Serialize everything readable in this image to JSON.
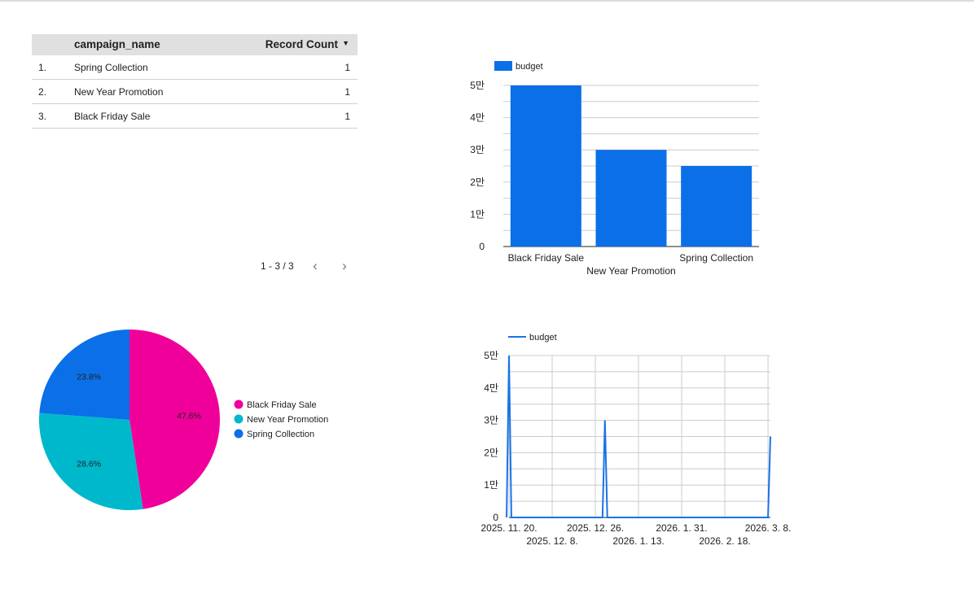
{
  "table": {
    "headers": [
      "campaign_name",
      "Record Count"
    ],
    "sort_icon": "sort-desc-icon",
    "rows": [
      {
        "idx": "1.",
        "name": "Spring Collection",
        "count": "1"
      },
      {
        "idx": "2.",
        "name": "New Year Promotion",
        "count": "1"
      },
      {
        "idx": "3.",
        "name": "Black Friday Sale",
        "count": "1"
      }
    ],
    "pagination": "1 - 3 / 3",
    "prev_icon": "chevron-left-icon",
    "next_icon": "chevron-right-icon"
  },
  "colors": {
    "blue": "#0b6fe8",
    "pink": "#f0009a",
    "teal": "#00b8cc",
    "grid": "#cccccc"
  },
  "chart_data": [
    {
      "type": "bar",
      "categories": [
        "Black Friday Sale",
        "New Year Promotion",
        "Spring Collection"
      ],
      "series": [
        {
          "name": "budget",
          "values": [
            50000,
            30000,
            25000
          ]
        }
      ],
      "ylim": [
        0,
        50000
      ],
      "yticks": [
        {
          "v": 0,
          "label": "0"
        },
        {
          "v": 10000,
          "label": "1만"
        },
        {
          "v": 20000,
          "label": "2만"
        },
        {
          "v": 30000,
          "label": "3만"
        },
        {
          "v": 40000,
          "label": "4만"
        },
        {
          "v": 50000,
          "label": "5만"
        }
      ],
      "legend": "top-left",
      "grid": true
    },
    {
      "type": "pie",
      "labels": [
        "Black Friday Sale",
        "New Year Promotion",
        "Spring Collection"
      ],
      "values": [
        47.6,
        28.6,
        23.8
      ],
      "value_labels": [
        "47.6%",
        "28.6%",
        "23.8%"
      ],
      "colors": [
        "#f0009a",
        "#00b8cc",
        "#0b6fe8"
      ],
      "legend": "right"
    },
    {
      "type": "line",
      "series": [
        {
          "name": "budget",
          "points": [
            {
              "x": "2025-11-19",
              "y": 0
            },
            {
              "x": "2025-11-20",
              "y": 50000
            },
            {
              "x": "2025-11-21",
              "y": 0
            },
            {
              "x": "2025-12-29",
              "y": 0
            },
            {
              "x": "2025-12-30",
              "y": 30000
            },
            {
              "x": "2025-12-31",
              "y": 0
            },
            {
              "x": "2026-03-08",
              "y": 0
            },
            {
              "x": "2026-03-09",
              "y": 25000
            }
          ]
        }
      ],
      "xlim": [
        "2025-11-20",
        "2026-03-09"
      ],
      "xticks": [
        {
          "x": "2025-11-20",
          "label": "2025. 11. 20."
        },
        {
          "x": "2025-12-08",
          "label": "2025. 12. 8."
        },
        {
          "x": "2025-12-26",
          "label": "2025. 12. 26."
        },
        {
          "x": "2026-01-13",
          "label": "2026. 1. 13."
        },
        {
          "x": "2026-01-31",
          "label": "2026. 1. 31."
        },
        {
          "x": "2026-02-18",
          "label": "2026. 2. 18."
        },
        {
          "x": "2026-03-08",
          "label": "2026. 3. 8."
        }
      ],
      "ylim": [
        0,
        50000
      ],
      "yticks": [
        {
          "v": 0,
          "label": "0"
        },
        {
          "v": 10000,
          "label": "1만"
        },
        {
          "v": 20000,
          "label": "2만"
        },
        {
          "v": 30000,
          "label": "3만"
        },
        {
          "v": 40000,
          "label": "4만"
        },
        {
          "v": 50000,
          "label": "5만"
        }
      ],
      "legend": "top-left",
      "grid": true
    }
  ]
}
